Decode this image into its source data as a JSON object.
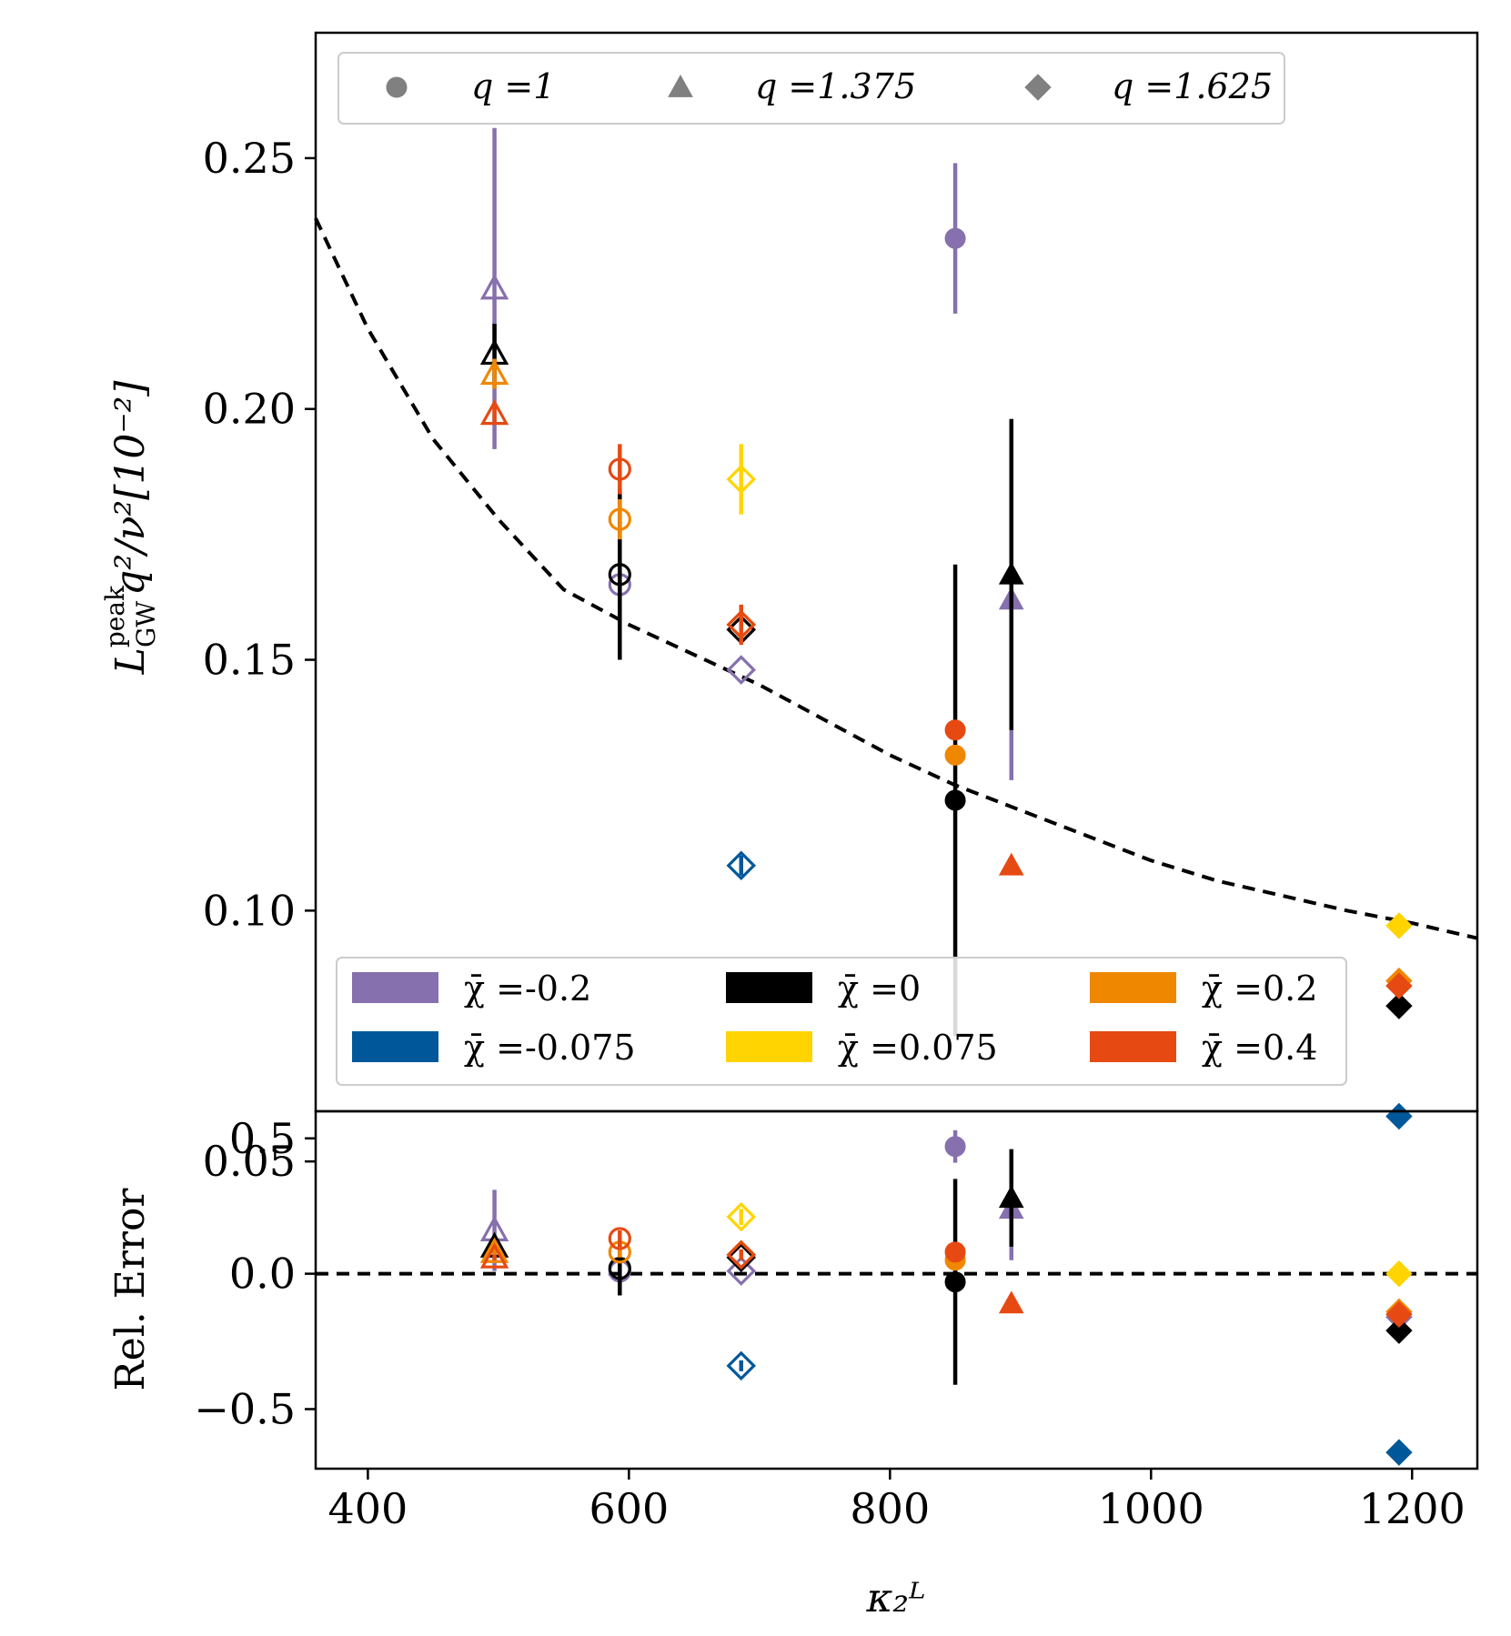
{
  "colors": {
    "chi_m0.2": "#8670ad",
    "chi_m0.075": "#00589a",
    "chi_0": "#000000",
    "chi_0.075": "#ffd400",
    "chi_0.2": "#f08700",
    "chi_0.4": "#e64a12",
    "marker_legend": "#808080"
  },
  "chart_data": [
    {
      "panel": "top",
      "type": "scatter",
      "xlabel": "κ₂ᴸ",
      "ylabel_main": "L",
      "ylabel_sup": "peak",
      "ylabel_sub": "GW",
      "ylabel_rest": "q²/ν²[10⁻²]",
      "xlim": [
        360,
        1250
      ],
      "ylim": [
        0.06,
        0.275
      ],
      "yticks": [
        0.05,
        0.1,
        0.15,
        0.2,
        0.25
      ],
      "ytick_labels": [
        "0.05",
        "0.10",
        "0.15",
        "0.20",
        "0.25"
      ],
      "fit_curve": {
        "style": "dashed",
        "x": [
          360,
          400,
          450,
          500,
          550,
          600,
          650,
          700,
          750,
          800,
          850,
          900,
          950,
          1000,
          1050,
          1100,
          1150,
          1200,
          1250
        ],
        "y": [
          0.238,
          0.216,
          0.194,
          0.178,
          0.164,
          0.157,
          0.151,
          0.145,
          0.138,
          0.131,
          0.125,
          0.12,
          0.115,
          0.11,
          0.106,
          0.103,
          0.1,
          0.0975,
          0.0945
        ]
      },
      "series": [
        {
          "name": "q=1 χ̄=-0.2",
          "marker": "circle",
          "filled": false,
          "color_key": "chi_m0.2",
          "x": [
            593
          ],
          "y": [
            0.165
          ],
          "err": [
            0.0
          ]
        },
        {
          "name": "q=1 χ̄=0",
          "marker": "circle",
          "filled": false,
          "color_key": "chi_0",
          "x": [
            593
          ],
          "y": [
            0.167
          ],
          "err": [
            0.017
          ]
        },
        {
          "name": "q=1 χ̄=0.2",
          "marker": "circle",
          "filled": false,
          "color_key": "chi_0.2",
          "x": [
            593
          ],
          "y": [
            0.178
          ],
          "err": [
            0.004
          ]
        },
        {
          "name": "q=1 χ̄=0.4",
          "marker": "circle",
          "filled": false,
          "color_key": "chi_0.4",
          "x": [
            593
          ],
          "y": [
            0.188
          ],
          "err": [
            0.005
          ]
        },
        {
          "name": "q=1 χ̄=-0.2",
          "marker": "circle",
          "filled": true,
          "color_key": "chi_m0.2",
          "x": [
            850
          ],
          "y": [
            0.234
          ],
          "err": [
            0.015
          ]
        },
        {
          "name": "q=1 χ̄=0",
          "marker": "circle",
          "filled": true,
          "color_key": "chi_0",
          "x": [
            850
          ],
          "y": [
            0.122
          ],
          "err": [
            0.047
          ]
        },
        {
          "name": "q=1 χ̄=0.2",
          "marker": "circle",
          "filled": true,
          "color_key": "chi_0.2",
          "x": [
            850
          ],
          "y": [
            0.131
          ],
          "err": [
            0.002
          ]
        },
        {
          "name": "q=1 χ̄=0.4",
          "marker": "circle",
          "filled": true,
          "color_key": "chi_0.4",
          "x": [
            850
          ],
          "y": [
            0.136
          ],
          "err": [
            0.002
          ]
        },
        {
          "name": "q=1.375 χ̄=-0.2",
          "marker": "triangle",
          "filled": false,
          "color_key": "chi_m0.2",
          "x": [
            497
          ],
          "y": [
            0.224
          ],
          "err": [
            0.032
          ]
        },
        {
          "name": "q=1.375 χ̄=0",
          "marker": "triangle",
          "filled": false,
          "color_key": "chi_0",
          "x": [
            497
          ],
          "y": [
            0.211
          ],
          "err": [
            0.006
          ]
        },
        {
          "name": "q=1.375 χ̄=0.2",
          "marker": "triangle",
          "filled": false,
          "color_key": "chi_0.2",
          "x": [
            497
          ],
          "y": [
            0.207
          ],
          "err": [
            0.003
          ]
        },
        {
          "name": "q=1.375 χ̄=0.4",
          "marker": "triangle",
          "filled": false,
          "color_key": "chi_0.4",
          "x": [
            497
          ],
          "y": [
            0.199
          ],
          "err": [
            0.002
          ]
        },
        {
          "name": "q=1.375 χ̄=-0.2",
          "marker": "triangle",
          "filled": true,
          "color_key": "chi_m0.2",
          "x": [
            893
          ],
          "y": [
            0.162
          ],
          "err": [
            0.036
          ]
        },
        {
          "name": "q=1.375 χ̄=0",
          "marker": "triangle",
          "filled": true,
          "color_key": "chi_0",
          "x": [
            893
          ],
          "y": [
            0.167
          ],
          "err": [
            0.031
          ]
        },
        {
          "name": "q=1.375 χ̄=0.4",
          "marker": "triangle",
          "filled": true,
          "color_key": "chi_0.4",
          "x": [
            893
          ],
          "y": [
            0.109
          ],
          "err": [
            0.0
          ]
        },
        {
          "name": "q=1.625 χ̄=-0.2",
          "marker": "diamond",
          "filled": false,
          "color_key": "chi_m0.2",
          "x": [
            686
          ],
          "y": [
            0.148
          ],
          "err": [
            0.0
          ]
        },
        {
          "name": "q=1.625 χ̄=-0.075",
          "marker": "diamond",
          "filled": false,
          "color_key": "chi_m0.075",
          "x": [
            686
          ],
          "y": [
            0.109
          ],
          "err": [
            0.002
          ]
        },
        {
          "name": "q=1.625 χ̄=0",
          "marker": "diamond",
          "filled": false,
          "color_key": "chi_0",
          "x": [
            686
          ],
          "y": [
            0.156
          ],
          "err": [
            0.001
          ]
        },
        {
          "name": "q=1.625 χ̄=0.075",
          "marker": "diamond",
          "filled": false,
          "color_key": "chi_0.075",
          "x": [
            686
          ],
          "y": [
            0.186
          ],
          "err": [
            0.007
          ]
        },
        {
          "name": "q=1.625 χ̄=0.2",
          "marker": "diamond",
          "filled": false,
          "color_key": "chi_0.2",
          "x": [
            686
          ],
          "y": [
            0.157
          ],
          "err": [
            0.002
          ]
        },
        {
          "name": "q=1.625 χ̄=0.4",
          "marker": "diamond",
          "filled": false,
          "color_key": "chi_0.4",
          "x": [
            686
          ],
          "y": [
            0.157
          ],
          "err": [
            0.004
          ]
        },
        {
          "name": "q=1.625 χ̄=-0.2",
          "marker": "diamond",
          "filled": true,
          "color_key": "chi_m0.2",
          "x": [
            1190
          ],
          "y": [
            0.085
          ],
          "err": [
            0.003
          ]
        },
        {
          "name": "q=1.625 χ̄=-0.075",
          "marker": "diamond",
          "filled": true,
          "color_key": "chi_m0.075",
          "x": [
            1190
          ],
          "y": [
            0.059
          ],
          "err": [
            0.0
          ]
        },
        {
          "name": "q=1.625 χ̄=0",
          "marker": "diamond",
          "filled": true,
          "color_key": "chi_0",
          "x": [
            1190
          ],
          "y": [
            0.081
          ],
          "err": [
            0.001
          ]
        },
        {
          "name": "q=1.625 χ̄=0.075",
          "marker": "diamond",
          "filled": true,
          "color_key": "chi_0.075",
          "x": [
            1190
          ],
          "y": [
            0.097
          ],
          "err": [
            0.0
          ]
        },
        {
          "name": "q=1.625 χ̄=0.2",
          "marker": "diamond",
          "filled": true,
          "color_key": "chi_0.2",
          "x": [
            1190
          ],
          "y": [
            0.086
          ],
          "err": [
            0.0
          ]
        },
        {
          "name": "q=1.625 χ̄=0.4",
          "marker": "diamond",
          "filled": true,
          "color_key": "chi_0.4",
          "x": [
            1190
          ],
          "y": [
            0.085
          ],
          "err": [
            0.0
          ]
        }
      ],
      "marker_legend": [
        {
          "marker": "circle",
          "label": "q =1"
        },
        {
          "marker": "triangle",
          "label": "q =1.375"
        },
        {
          "marker": "diamond",
          "label": "q =1.625"
        }
      ],
      "color_legend": [
        {
          "color_key": "chi_m0.2",
          "label": "χ̄ =-0.2"
        },
        {
          "color_key": "chi_m0.075",
          "label": "χ̄ =-0.075"
        },
        {
          "color_key": "chi_0",
          "label": "χ̄ =0"
        },
        {
          "color_key": "chi_0.075",
          "label": "χ̄ =0.075"
        },
        {
          "color_key": "chi_0.2",
          "label": "χ̄ =0.2"
        },
        {
          "color_key": "chi_0.4",
          "label": "χ̄ =0.4"
        }
      ]
    },
    {
      "panel": "bottom",
      "type": "scatter",
      "xlabel": "κ₂ᴸ",
      "ylabel": "Rel. Error",
      "xlim": [
        360,
        1250
      ],
      "ylim": [
        -0.72,
        0.6
      ],
      "xticks": [
        400,
        600,
        800,
        1000,
        1200
      ],
      "xtick_labels": [
        "400",
        "600",
        "800",
        "1000",
        "1200"
      ],
      "yticks": [
        0.5,
        0.0,
        -0.5
      ],
      "ytick_labels": [
        "0.5",
        "0.0",
        "−0.5"
      ],
      "reference_line": {
        "y": 0.0,
        "style": "dashed"
      },
      "series": [
        {
          "name": "q=1 χ̄=-0.2",
          "marker": "circle",
          "filled": false,
          "color_key": "chi_m0.2",
          "x": [
            593
          ],
          "y": [
            0.01
          ],
          "err": [
            0.0
          ]
        },
        {
          "name": "q=1 χ̄=0",
          "marker": "circle",
          "filled": false,
          "color_key": "chi_0",
          "x": [
            593
          ],
          "y": [
            0.02
          ],
          "err": [
            0.1
          ]
        },
        {
          "name": "q=1 χ̄=0.2",
          "marker": "circle",
          "filled": false,
          "color_key": "chi_0.2",
          "x": [
            593
          ],
          "y": [
            0.08
          ],
          "err": [
            0.02
          ]
        },
        {
          "name": "q=1 χ̄=0.4",
          "marker": "circle",
          "filled": false,
          "color_key": "chi_0.4",
          "x": [
            593
          ],
          "y": [
            0.13
          ],
          "err": [
            0.03
          ]
        },
        {
          "name": "q=1 χ̄=-0.2",
          "marker": "circle",
          "filled": true,
          "color_key": "chi_m0.2",
          "x": [
            850
          ],
          "y": [
            0.47
          ],
          "err": [
            0.06
          ]
        },
        {
          "name": "q=1 χ̄=0",
          "marker": "circle",
          "filled": true,
          "color_key": "chi_0",
          "x": [
            850
          ],
          "y": [
            -0.03
          ],
          "err": [
            0.38
          ]
        },
        {
          "name": "q=1 χ̄=0.2",
          "marker": "circle",
          "filled": true,
          "color_key": "chi_0.2",
          "x": [
            850
          ],
          "y": [
            0.05
          ],
          "err": [
            0.02
          ]
        },
        {
          "name": "q=1 χ̄=0.4",
          "marker": "circle",
          "filled": true,
          "color_key": "chi_0.4",
          "x": [
            850
          ],
          "y": [
            0.08
          ],
          "err": [
            0.02
          ]
        },
        {
          "name": "q=1.375 χ̄=-0.2",
          "marker": "triangle",
          "filled": false,
          "color_key": "chi_m0.2",
          "x": [
            497
          ],
          "y": [
            0.16
          ],
          "err": [
            0.15
          ]
        },
        {
          "name": "q=1.375 χ̄=0",
          "marker": "triangle",
          "filled": false,
          "color_key": "chi_0",
          "x": [
            497
          ],
          "y": [
            0.1
          ],
          "err": [
            0.04
          ]
        },
        {
          "name": "q=1.375 χ̄=0.2",
          "marker": "triangle",
          "filled": false,
          "color_key": "chi_0.2",
          "x": [
            497
          ],
          "y": [
            0.08
          ],
          "err": [
            0.02
          ]
        },
        {
          "name": "q=1.375 χ̄=0.4",
          "marker": "triangle",
          "filled": false,
          "color_key": "chi_0.4",
          "x": [
            497
          ],
          "y": [
            0.06
          ],
          "err": [
            0.01
          ]
        },
        {
          "name": "q=1.375 χ̄=-0.2",
          "marker": "triangle",
          "filled": true,
          "color_key": "chi_m0.2",
          "x": [
            893
          ],
          "y": [
            0.24
          ],
          "err": [
            0.19
          ]
        },
        {
          "name": "q=1.375 χ̄=0",
          "marker": "triangle",
          "filled": true,
          "color_key": "chi_0",
          "x": [
            893
          ],
          "y": [
            0.28
          ],
          "err": [
            0.18
          ]
        },
        {
          "name": "q=1.375 χ̄=0.4",
          "marker": "triangle",
          "filled": true,
          "color_key": "chi_0.4",
          "x": [
            893
          ],
          "y": [
            -0.11
          ],
          "err": [
            0.0
          ]
        },
        {
          "name": "q=1.625 χ̄=-0.2",
          "marker": "diamond",
          "filled": false,
          "color_key": "chi_m0.2",
          "x": [
            686
          ],
          "y": [
            0.01
          ],
          "err": [
            0.0
          ]
        },
        {
          "name": "q=1.625 χ̄=-0.075",
          "marker": "diamond",
          "filled": false,
          "color_key": "chi_m0.075",
          "x": [
            686
          ],
          "y": [
            -0.34
          ],
          "err": [
            0.02
          ]
        },
        {
          "name": "q=1.625 χ̄=0",
          "marker": "diamond",
          "filled": false,
          "color_key": "chi_0",
          "x": [
            686
          ],
          "y": [
            0.06
          ],
          "err": [
            0.01
          ]
        },
        {
          "name": "q=1.625 χ̄=0.075",
          "marker": "diamond",
          "filled": false,
          "color_key": "chi_0.075",
          "x": [
            686
          ],
          "y": [
            0.21
          ],
          "err": [
            0.03
          ]
        },
        {
          "name": "q=1.625 χ̄=0.2",
          "marker": "diamond",
          "filled": false,
          "color_key": "chi_0.2",
          "x": [
            686
          ],
          "y": [
            0.07
          ],
          "err": [
            0.01
          ]
        },
        {
          "name": "q=1.625 χ̄=0.4",
          "marker": "diamond",
          "filled": false,
          "color_key": "chi_0.4",
          "x": [
            686
          ],
          "y": [
            0.07
          ],
          "err": [
            0.02
          ]
        },
        {
          "name": "q=1.625 χ̄=-0.2",
          "marker": "diamond",
          "filled": true,
          "color_key": "chi_m0.2",
          "x": [
            1190
          ],
          "y": [
            -0.16
          ],
          "err": [
            0.0
          ]
        },
        {
          "name": "q=1.625 χ̄=-0.075",
          "marker": "diamond",
          "filled": true,
          "color_key": "chi_m0.075",
          "x": [
            1190
          ],
          "y": [
            -0.66
          ],
          "err": [
            0.0
          ]
        },
        {
          "name": "q=1.625 χ̄=0",
          "marker": "diamond",
          "filled": true,
          "color_key": "chi_0",
          "x": [
            1190
          ],
          "y": [
            -0.21
          ],
          "err": [
            0.0
          ]
        },
        {
          "name": "q=1.625 χ̄=0.075",
          "marker": "diamond",
          "filled": true,
          "color_key": "chi_0.075",
          "x": [
            1190
          ],
          "y": [
            0.0
          ],
          "err": [
            0.0
          ]
        },
        {
          "name": "q=1.625 χ̄=0.2",
          "marker": "diamond",
          "filled": true,
          "color_key": "chi_0.2",
          "x": [
            1190
          ],
          "y": [
            -0.14
          ],
          "err": [
            0.0
          ]
        },
        {
          "name": "q=1.625 χ̄=0.4",
          "marker": "diamond",
          "filled": true,
          "color_key": "chi_0.4",
          "x": [
            1190
          ],
          "y": [
            -0.15
          ],
          "err": [
            0.0
          ]
        }
      ]
    }
  ]
}
